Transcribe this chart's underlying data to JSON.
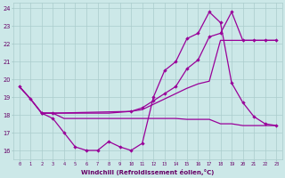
{
  "bg_color": "#cce8e8",
  "grid_color": "#aacccc",
  "line_color": "#990099",
  "xlabel": "Windchill (Refroidissement éolien,°C)",
  "xmin": -0.5,
  "xmax": 23.5,
  "ymin": 15.5,
  "ymax": 24.3,
  "yticks": [
    16,
    17,
    18,
    19,
    20,
    21,
    22,
    23,
    24
  ],
  "xticks": [
    0,
    1,
    2,
    3,
    4,
    5,
    6,
    7,
    8,
    9,
    10,
    11,
    12,
    13,
    14,
    15,
    16,
    17,
    18,
    19,
    20,
    21,
    22,
    23
  ],
  "curves": [
    {
      "name": "line1_dip",
      "x": [
        0,
        1,
        2,
        3,
        4,
        5,
        6,
        7,
        8,
        9,
        10,
        11,
        12,
        13,
        14,
        15,
        16,
        17,
        18,
        19,
        20,
        21,
        22,
        23
      ],
      "y": [
        19.6,
        18.9,
        18.1,
        17.8,
        17.0,
        16.2,
        16.0,
        16.0,
        16.5,
        16.2,
        16.0,
        16.4,
        19.0,
        20.5,
        21.0,
        22.3,
        22.6,
        23.8,
        23.2,
        19.8,
        18.7,
        17.9,
        17.5,
        17.4
      ],
      "marker": true,
      "lw": 0.9
    },
    {
      "name": "line2_gradual",
      "x": [
        0,
        1,
        2,
        3,
        4,
        5,
        6,
        7,
        8,
        9,
        10,
        11,
        12,
        13,
        14,
        15,
        16,
        17,
        18,
        19,
        20,
        21,
        22,
        23
      ],
      "y": [
        19.6,
        18.9,
        18.1,
        18.1,
        18.1,
        18.1,
        18.1,
        18.1,
        18.1,
        18.15,
        18.2,
        18.3,
        18.6,
        18.9,
        19.2,
        19.5,
        19.75,
        19.9,
        22.2,
        22.2,
        22.2,
        22.2,
        22.2,
        22.2
      ],
      "marker": false,
      "lw": 0.9
    },
    {
      "name": "line3_upper",
      "x": [
        2,
        3,
        10,
        11,
        12,
        13,
        14,
        15,
        16,
        17,
        18,
        19,
        20,
        21,
        22,
        23
      ],
      "y": [
        18.1,
        18.1,
        18.2,
        18.4,
        18.8,
        19.2,
        19.6,
        20.6,
        21.1,
        22.4,
        22.6,
        23.8,
        22.2,
        22.2,
        22.2,
        22.2
      ],
      "marker": true,
      "lw": 0.9
    },
    {
      "name": "line4_flat",
      "x": [
        0,
        1,
        2,
        3,
        4,
        5,
        6,
        7,
        8,
        9,
        10,
        11,
        12,
        13,
        14,
        15,
        16,
        17,
        18,
        19,
        20,
        21,
        22,
        23
      ],
      "y": [
        19.6,
        18.9,
        18.1,
        18.1,
        17.8,
        17.8,
        17.8,
        17.8,
        17.8,
        17.8,
        17.8,
        17.8,
        17.8,
        17.8,
        17.8,
        17.75,
        17.75,
        17.75,
        17.5,
        17.5,
        17.4,
        17.4,
        17.4,
        17.4
      ],
      "marker": false,
      "lw": 0.9
    }
  ]
}
